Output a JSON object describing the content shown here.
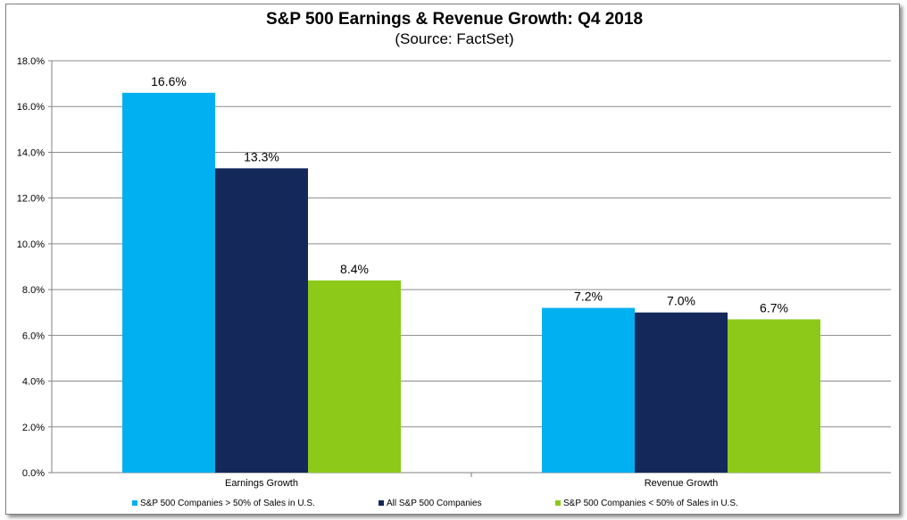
{
  "chart_data": {
    "type": "bar",
    "title": "S&P 500 Earnings & Revenue Growth:  Q4 2018",
    "subtitle": "(Source: FactSet)",
    "xlabel": "",
    "ylabel": "",
    "ylim": [
      0,
      18
    ],
    "yticks": [
      "0.0%",
      "2.0%",
      "4.0%",
      "6.0%",
      "8.0%",
      "10.0%",
      "12.0%",
      "14.0%",
      "16.0%",
      "18.0%"
    ],
    "grid": true,
    "legend_position": "bottom",
    "categories": [
      "Earnings Growth",
      "Revenue Growth"
    ],
    "series": [
      {
        "name": "S&P 500 Companies > 50% of Sales in U.S.",
        "color": "#00b0f0",
        "values": [
          16.6,
          7.2
        ],
        "labels": [
          "16.6%",
          "7.2%"
        ]
      },
      {
        "name": "All S&P 500 Companies",
        "color": "#14285a",
        "values": [
          13.3,
          7.0
        ],
        "labels": [
          "13.3%",
          "7.0%"
        ]
      },
      {
        "name": "S&P 500 Companies < 50% of Sales in U.S.",
        "color": "#8dc919",
        "values": [
          8.4,
          6.7
        ],
        "labels": [
          "8.4%",
          "6.7%"
        ]
      }
    ]
  }
}
